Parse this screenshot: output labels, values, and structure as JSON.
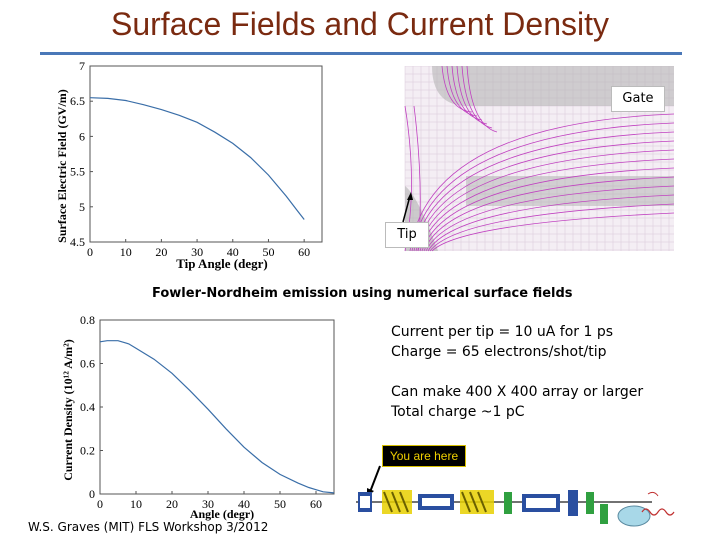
{
  "slide": {
    "title": "Surface Fields and Current Density",
    "caption": "Fowler-Nordheim emission using numerical surface fields",
    "notes": [
      "Current per tip = 10 uA for 1 ps",
      "Charge = 65 electrons/shot/tip",
      "Can make 400 X 400 array or larger",
      "Total charge ~1 pC"
    ],
    "you_are_here": "You are here",
    "footer": "W.S. Graves (MIT) FLS Workshop 3/2012",
    "gate_label": "Gate",
    "tip_label": "Tip"
  },
  "colors": {
    "title": "#7a2a10",
    "rule": "#4a78b8",
    "curve": "#3a6ea8",
    "field_lines": "#c040c0",
    "conductor": "#b0b0b0",
    "badge_bg": "#000000",
    "badge_text": "#f0d000"
  },
  "chart_data": [
    {
      "type": "line",
      "xlabel": "Tip Angle (degr)",
      "ylabel": "Surface Electric Field (GV/m)",
      "xticks": [
        0,
        10,
        20,
        30,
        40,
        50,
        60
      ],
      "yticks": [
        4.5,
        5,
        5.5,
        6,
        6.5,
        7
      ],
      "xlim": [
        0,
        65
      ],
      "ylim": [
        4.5,
        7
      ],
      "x": [
        0,
        5,
        10,
        15,
        20,
        25,
        30,
        35,
        40,
        45,
        50,
        55,
        58,
        60
      ],
      "y": [
        6.55,
        6.54,
        6.51,
        6.45,
        6.38,
        6.3,
        6.2,
        6.06,
        5.9,
        5.7,
        5.45,
        5.15,
        4.95,
        4.82
      ]
    },
    {
      "type": "line",
      "xlabel": "Angle (degr)",
      "ylabel": "Current Density (10¹² A/m²)",
      "xticks": [
        0,
        10,
        20,
        30,
        40,
        50,
        60
      ],
      "yticks": [
        0,
        0.2,
        0.4,
        0.6,
        0.8
      ],
      "xlim": [
        0,
        65
      ],
      "ylim": [
        0,
        0.8
      ],
      "x": [
        0,
        2,
        5,
        8,
        10,
        15,
        20,
        25,
        30,
        35,
        40,
        45,
        50,
        55,
        58,
        60,
        62,
        65
      ],
      "y": [
        0.7,
        0.705,
        0.705,
        0.69,
        0.67,
        0.62,
        0.555,
        0.475,
        0.39,
        0.3,
        0.215,
        0.145,
        0.09,
        0.05,
        0.03,
        0.02,
        0.01,
        0.005
      ]
    }
  ]
}
